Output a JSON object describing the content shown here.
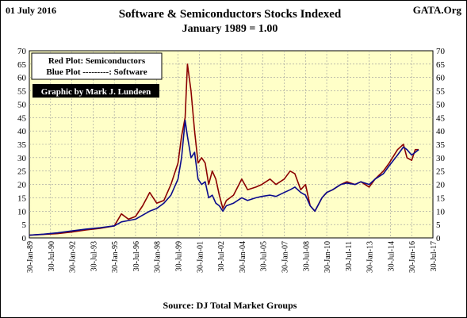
{
  "header": {
    "date": "01 July 2016",
    "title": "Software & Semiconductors Stocks Indexed",
    "subtitle": "January 1989 = 1.00",
    "brand": "GATA.Org"
  },
  "legend": {
    "line1": "Red Plot: Semiconductors",
    "line2": "Blue Plot ---------: Software",
    "credit": "Graphic by Mark J. Lundeen"
  },
  "footer": {
    "source": "Source: DJ Total Market Groups"
  },
  "colors": {
    "plot_bg": "#ffffc8",
    "semiconductors": "#8b0000",
    "software": "#0a0a8c",
    "grid": "#9a9a9a"
  },
  "chart_data": {
    "type": "line",
    "grid": true,
    "legend_position": "top-left",
    "y_ticks": [
      0,
      5,
      10,
      15,
      20,
      25,
      30,
      35,
      40,
      45,
      50,
      55,
      60,
      65,
      70
    ],
    "ylim": [
      0,
      70
    ],
    "x_tick_labels": [
      "30-Jan-89",
      "30-Jul-90",
      "30-Jan-92",
      "30-Jul-93",
      "30-Jan-95",
      "30-Jul-96",
      "30-Jan-98",
      "30-Jul-99",
      "30-Jan-01",
      "30-Jul-02",
      "30-Jan-04",
      "30-Jul-05",
      "30-Jan-07",
      "30-Jul-08",
      "30-Jan-10",
      "30-Jul-11",
      "30-Jan-13",
      "30-Jul-14",
      "30-Jan-16",
      "30-Jul-17"
    ],
    "x": [
      "1989-01",
      "1990-01",
      "1991-01",
      "1992-01",
      "1993-01",
      "1994-01",
      "1995-01",
      "1995-07",
      "1996-01",
      "1996-07",
      "1997-01",
      "1997-07",
      "1998-01",
      "1998-07",
      "1999-01",
      "1999-07",
      "1999-10",
      "2000-01",
      "2000-03",
      "2000-06",
      "2000-09",
      "2000-12",
      "2001-03",
      "2001-06",
      "2001-09",
      "2001-12",
      "2002-03",
      "2002-06",
      "2002-09",
      "2002-12",
      "2003-06",
      "2004-01",
      "2004-06",
      "2005-01",
      "2005-06",
      "2006-01",
      "2006-06",
      "2007-01",
      "2007-06",
      "2007-10",
      "2008-03",
      "2008-07",
      "2008-11",
      "2009-03",
      "2009-09",
      "2010-01",
      "2010-06",
      "2011-01",
      "2011-06",
      "2012-01",
      "2012-06",
      "2013-01",
      "2013-06",
      "2014-01",
      "2014-06",
      "2015-01",
      "2015-06",
      "2015-09",
      "2016-01",
      "2016-04",
      "2016-07"
    ],
    "series": [
      {
        "name": "Semiconductors",
        "values": [
          1.0,
          1.3,
          1.6,
          2.2,
          3.0,
          3.6,
          4.5,
          9.0,
          7.0,
          8.0,
          12.0,
          17.0,
          13.0,
          14.0,
          20.0,
          28.0,
          38.0,
          45.0,
          65.0,
          55.0,
          40.0,
          28.0,
          30.0,
          28.0,
          20.0,
          25.0,
          22.0,
          16.0,
          11.0,
          14.0,
          16.0,
          22.0,
          18.0,
          19.0,
          20.0,
          22.0,
          20.0,
          22.0,
          25.0,
          24.0,
          18.0,
          20.0,
          12.0,
          10.0,
          15.0,
          17.0,
          18.0,
          20.0,
          21.0,
          20.0,
          21.0,
          19.0,
          22.0,
          25.0,
          28.0,
          33.0,
          35.0,
          30.0,
          29.0,
          33.0,
          33.0
        ]
      },
      {
        "name": "Software",
        "values": [
          1.0,
          1.4,
          1.9,
          2.6,
          3.3,
          3.8,
          4.5,
          6.0,
          6.5,
          7.0,
          8.5,
          10.0,
          11.0,
          13.0,
          16.0,
          22.0,
          30.0,
          44.0,
          38.0,
          30.0,
          32.0,
          22.0,
          20.0,
          21.0,
          15.0,
          16.0,
          13.0,
          12.0,
          10.0,
          12.0,
          13.0,
          15.0,
          14.0,
          15.0,
          15.5,
          16.0,
          15.5,
          17.0,
          18.0,
          19.0,
          17.0,
          16.0,
          12.0,
          10.0,
          15.0,
          17.0,
          18.0,
          20.0,
          20.5,
          20.0,
          21.0,
          20.0,
          22.0,
          24.0,
          27.0,
          31.0,
          34.0,
          33.0,
          31.0,
          32.0,
          33.0
        ]
      }
    ]
  }
}
